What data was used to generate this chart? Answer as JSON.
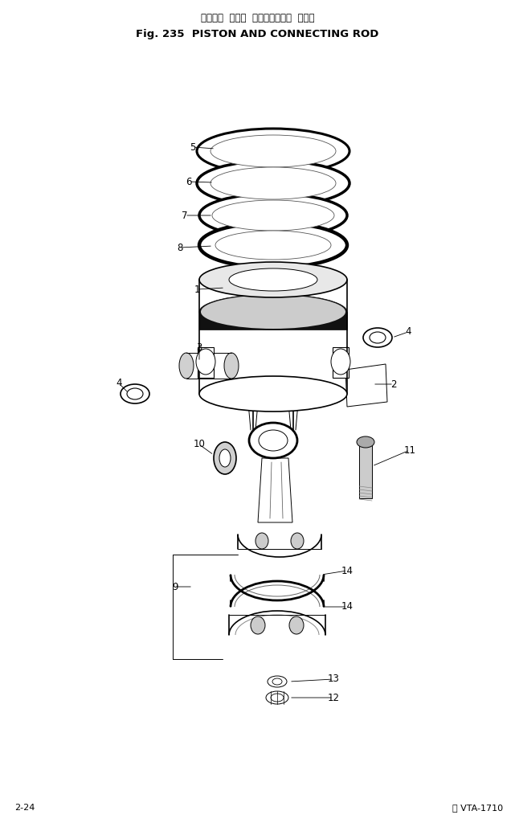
{
  "title_japanese": "ピストン  および  コネクティング  ロッド",
  "title_english": "Fig. 235  PISTON AND CONNECTING ROD",
  "footer_left": "2-24",
  "footer_right": "ⓘ VTA-1710",
  "bg_color": "#ffffff",
  "line_color": "#000000",
  "title_fontsize": 9.5,
  "title_jp_fontsize": 8.5,
  "footer_fontsize": 8,
  "label_fontsize": 8.5,
  "fig_w": 6.41,
  "fig_h": 10.19,
  "dpi": 100
}
